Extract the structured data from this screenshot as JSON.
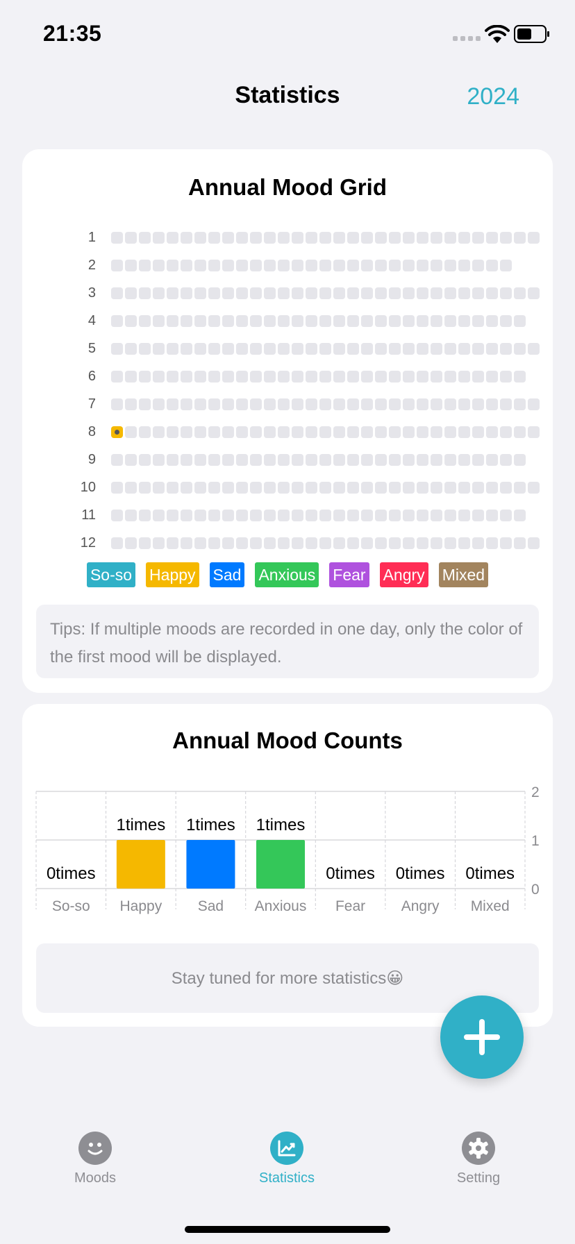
{
  "status_bar": {
    "time": "21:35"
  },
  "header": {
    "title": "Statistics",
    "year": "2024"
  },
  "grid_card": {
    "title": "Annual Mood Grid",
    "rows": [
      {
        "label": "1",
        "days": 31
      },
      {
        "label": "2",
        "days": 29
      },
      {
        "label": "3",
        "days": 31
      },
      {
        "label": "4",
        "days": 30
      },
      {
        "label": "5",
        "days": 31
      },
      {
        "label": "6",
        "days": 30
      },
      {
        "label": "7",
        "days": 31
      },
      {
        "label": "8",
        "days": 31,
        "filled_day": 1
      },
      {
        "label": "9",
        "days": 30
      },
      {
        "label": "10",
        "days": 31
      },
      {
        "label": "11",
        "days": 30
      },
      {
        "label": "12",
        "days": 31
      }
    ],
    "legend": [
      {
        "label": "So-so",
        "color": "#30b0c7"
      },
      {
        "label": "Happy",
        "color": "#f5b800"
      },
      {
        "label": "Sad",
        "color": "#007aff"
      },
      {
        "label": "Anxious",
        "color": "#34c759"
      },
      {
        "label": "Fear",
        "color": "#af52de"
      },
      {
        "label": "Angry",
        "color": "#ff2d55"
      },
      {
        "label": "Mixed",
        "color": "#a2845e"
      }
    ],
    "tips": "Tips: If multiple moods are recorded in one day, only the color of the first mood will be displayed."
  },
  "counts_card": {
    "title": "Annual Mood Counts",
    "more_text": "Stay tuned for more statistics😀"
  },
  "chart_data": {
    "type": "bar",
    "categories": [
      "So-so",
      "Happy",
      "Sad",
      "Anxious",
      "Fear",
      "Angry",
      "Mixed"
    ],
    "values": [
      0,
      1,
      1,
      1,
      0,
      0,
      0
    ],
    "data_labels": [
      "0times",
      "1times",
      "1times",
      "1times",
      "0times",
      "0times",
      "0times"
    ],
    "colors": [
      "#30b0c7",
      "#f5b800",
      "#007aff",
      "#34c759",
      "#af52de",
      "#ff2d55",
      "#a2845e"
    ],
    "yticks": [
      "2",
      "1",
      "0"
    ],
    "ylim": [
      0,
      2
    ],
    "grid": true,
    "title": "Annual Mood Counts",
    "xlabel": "",
    "ylabel": ""
  },
  "fab": {
    "icon": "plus-icon"
  },
  "tabbar": {
    "tabs": [
      {
        "label": "Moods",
        "icon": "smiley-icon",
        "active": false
      },
      {
        "label": "Statistics",
        "icon": "chart-icon",
        "active": true
      },
      {
        "label": "Setting",
        "icon": "gear-icon",
        "active": false
      }
    ],
    "active_color": "#30b0c7",
    "inactive_color": "#8e8e93"
  }
}
